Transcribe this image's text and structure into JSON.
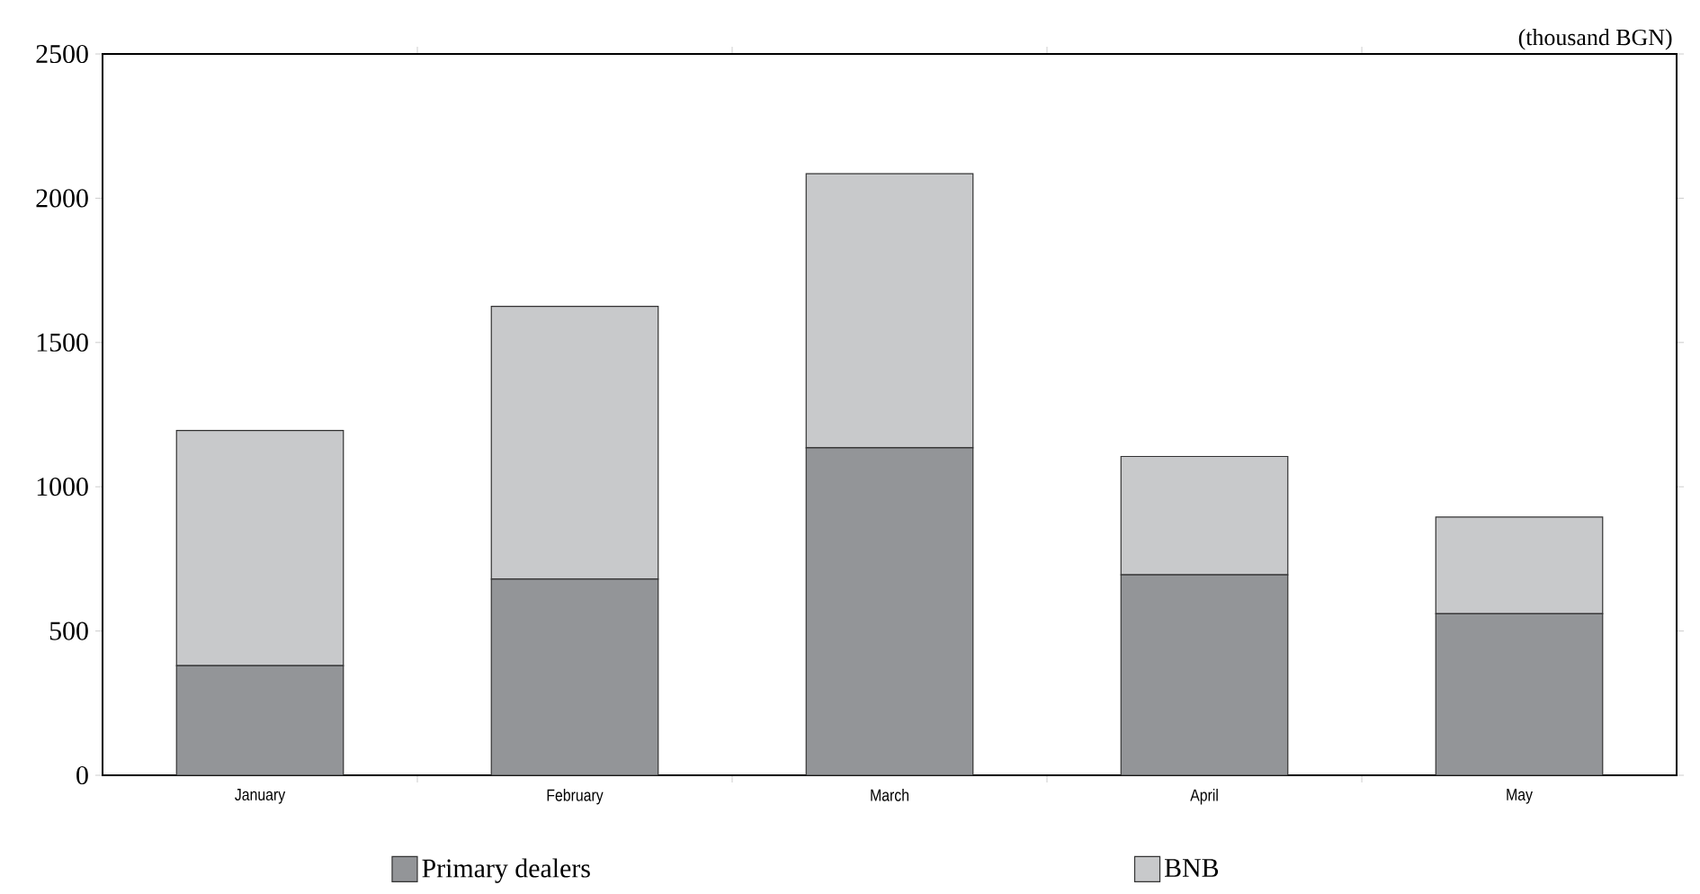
{
  "chart_data": {
    "type": "bar",
    "stacked": true,
    "categories": [
      "January",
      "February",
      "March",
      "April",
      "May"
    ],
    "series": [
      {
        "name": "Primary dealers",
        "color": "#939598",
        "values": [
          380,
          680,
          1135,
          695,
          560
        ]
      },
      {
        "name": "BNB",
        "color": "#c8c9cb",
        "values": [
          815,
          945,
          950,
          410,
          335
        ]
      }
    ],
    "ylim": [
      0,
      2500
    ],
    "yticks": [
      0,
      500,
      1000,
      1500,
      2000,
      2500
    ],
    "annotations": [
      "(thousand BGN)"
    ],
    "legend": "bottom",
    "grid": false
  }
}
